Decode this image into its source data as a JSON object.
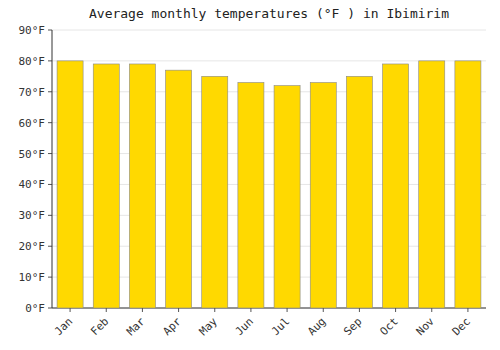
{
  "chart_data": {
    "type": "bar",
    "title": "Average monthly temperatures (°F ) in Ibimirim",
    "categories": [
      "Jan",
      "Feb",
      "Mar",
      "Apr",
      "May",
      "Jun",
      "Jul",
      "Aug",
      "Sep",
      "Oct",
      "Nov",
      "Dec"
    ],
    "values": [
      80,
      79,
      79,
      77,
      75,
      73,
      72,
      73,
      75,
      79,
      80,
      80
    ],
    "color": "#FFD900",
    "ylim": [
      0,
      90
    ],
    "yticks": [
      {
        "value": 0,
        "label": "0°F"
      },
      {
        "value": 10,
        "label": "10°F"
      },
      {
        "value": 20,
        "label": "20°F"
      },
      {
        "value": 30,
        "label": "30°F"
      },
      {
        "value": 40,
        "label": "40°F"
      },
      {
        "value": 50,
        "label": "50°F"
      },
      {
        "value": 60,
        "label": "60°F"
      },
      {
        "value": 70,
        "label": "70°F"
      },
      {
        "value": 80,
        "label": "80°F"
      },
      {
        "value": 90,
        "label": "90°F"
      }
    ],
    "grid": true
  }
}
